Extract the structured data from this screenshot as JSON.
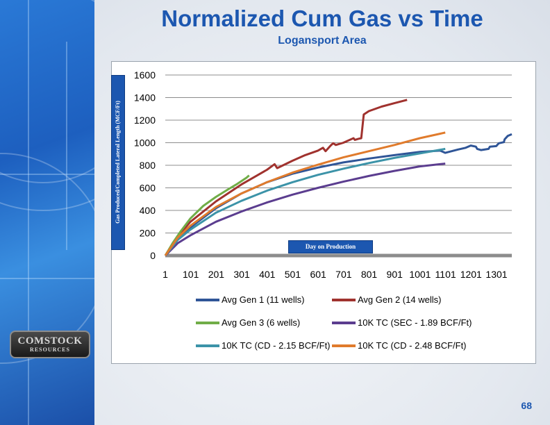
{
  "slide": {
    "title": "Normalized Cum Gas vs Time",
    "subtitle": "Logansport Area",
    "page_number": "68",
    "logo": {
      "line1": "COMSTOCK",
      "line2": "RESOURCES"
    }
  },
  "chart_data": {
    "type": "line",
    "title": "",
    "ylabel": "Gas Produced/Completed Lateral Length (MCF/Ft)",
    "xlabel": "Day on Production",
    "xlim": [
      1,
      1361
    ],
    "ylim": [
      0,
      1600
    ],
    "yticks": [
      0,
      200,
      400,
      600,
      800,
      1000,
      1200,
      1400,
      1600
    ],
    "xticks": [
      1,
      101,
      201,
      301,
      401,
      501,
      601,
      701,
      801,
      901,
      1001,
      1101,
      1201,
      1301
    ],
    "grid": true,
    "legend_position": "bottom",
    "series": [
      {
        "name": "Avg Gen 1 (11 wells)",
        "color": "#2f5597",
        "x": [
          1,
          50,
          100,
          200,
          300,
          400,
          500,
          600,
          700,
          800,
          900,
          1000,
          1080,
          1100,
          1150,
          1180,
          1200,
          1220,
          1225,
          1240,
          1270,
          1275,
          1300,
          1310,
          1330,
          1333,
          1345,
          1361
        ],
        "y": [
          0,
          140,
          250,
          420,
          550,
          650,
          725,
          780,
          825,
          860,
          890,
          918,
          930,
          910,
          940,
          955,
          975,
          965,
          945,
          935,
          945,
          965,
          970,
          995,
          1005,
          1030,
          1060,
          1075
        ]
      },
      {
        "name": "Avg Gen 2 (14 wells)",
        "color": "#a0322e",
        "x": [
          1,
          50,
          100,
          200,
          300,
          400,
          430,
          440,
          500,
          550,
          600,
          620,
          630,
          650,
          660,
          670,
          700,
          740,
          745,
          760,
          770,
          780,
          800,
          850,
          900,
          950
        ],
        "y": [
          0,
          170,
          300,
          480,
          630,
          760,
          810,
          775,
          840,
          890,
          930,
          955,
          925,
          975,
          995,
          980,
          1000,
          1040,
          1025,
          1035,
          1040,
          1250,
          1280,
          1320,
          1350,
          1380
        ]
      },
      {
        "name": "Avg Gen 3 (6 wells)",
        "color": "#70ad47",
        "x": [
          1,
          30,
          60,
          100,
          150,
          200,
          250,
          280,
          300,
          320,
          330
        ],
        "y": [
          0,
          110,
          210,
          330,
          440,
          520,
          590,
          630,
          660,
          690,
          710
        ]
      },
      {
        "name": "10K TC (SEC - 1.89 BCF/Ft)",
        "color": "#5b3d8f",
        "x": [
          1,
          50,
          100,
          200,
          300,
          400,
          500,
          600,
          700,
          800,
          900,
          1000,
          1100
        ],
        "y": [
          0,
          110,
          180,
          300,
          390,
          470,
          540,
          600,
          655,
          705,
          750,
          790,
          815
        ]
      },
      {
        "name": "10K TC (CD - 2.15 BCF/Ft)",
        "color": "#3c93a8",
        "x": [
          1,
          50,
          100,
          200,
          300,
          400,
          500,
          600,
          700,
          800,
          900,
          1000,
          1100
        ],
        "y": [
          0,
          140,
          230,
          380,
          485,
          575,
          650,
          715,
          770,
          820,
          865,
          905,
          945
        ]
      },
      {
        "name": "10K TC (CD - 2.48 BCF/Ft)",
        "color": "#e07b2c",
        "x": [
          1,
          50,
          100,
          200,
          300,
          400,
          500,
          600,
          700,
          800,
          900,
          1000,
          1100
        ],
        "y": [
          0,
          160,
          265,
          430,
          550,
          650,
          735,
          805,
          870,
          925,
          980,
          1040,
          1090
        ]
      }
    ]
  }
}
